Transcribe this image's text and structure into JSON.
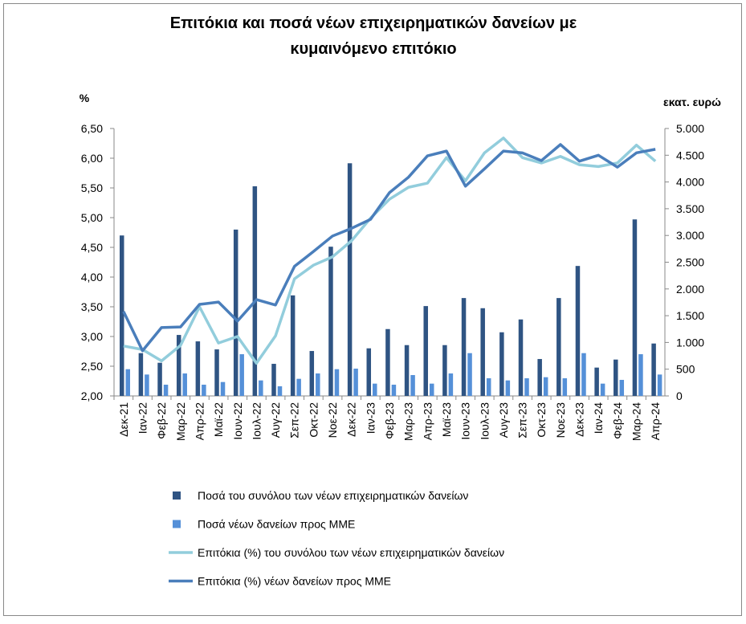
{
  "chart_data": {
    "type": "bar-line",
    "title": "Επιτόκια και ποσά νέων επιχειρηματικών  δανείων με κυμαινόμενο επιτόκιο",
    "y_label": "%",
    "y2_label": "εκατ. ευρώ",
    "categories": [
      "Δεκ-21",
      "Ιαν-22",
      "Φεβ-22",
      "Μαρ-22",
      "Απρ-22",
      "Μαϊ-22",
      "Ιουν-22",
      "Ιουλ-22",
      "Αυγ-22",
      "Σεπ-22",
      "Οκτ-22",
      "Νοε-22",
      "Δεκ-22",
      "Ιαν-23",
      "Φεβ-23",
      "Μαρ-23",
      "Απρ-23",
      "Μαϊ-23",
      "Ιουν-23",
      "Ιουλ-23",
      "Αυγ-23",
      "Σεπ-23",
      "Οκτ-23",
      "Νοε-23",
      "Δεκ-23",
      "Ιαν-24",
      "Φεβ-24",
      "Μαρ-24",
      "Απρ-24"
    ],
    "series": [
      {
        "name": "Ποσά του συνόλου των νέων επιχειρηματικών δανείων",
        "kind": "bar",
        "axis": "y2",
        "color": "#2f5483",
        "values": [
          3000,
          800,
          620,
          1140,
          1020,
          870,
          3110,
          3920,
          600,
          1880,
          840,
          2790,
          4350,
          890,
          1250,
          950,
          1680,
          950,
          1830,
          1640,
          1190,
          1430,
          690,
          1830,
          2430,
          530,
          680,
          3300,
          980
        ]
      },
      {
        "name": "Ποσά νέων δανείων προς ΜΜΕ",
        "kind": "bar",
        "axis": "y2",
        "color": "#5590d8",
        "values": [
          500,
          400,
          210,
          420,
          210,
          260,
          780,
          290,
          180,
          320,
          420,
          500,
          510,
          230,
          210,
          390,
          230,
          420,
          800,
          330,
          290,
          330,
          350,
          330,
          800,
          230,
          300,
          780,
          400
        ]
      },
      {
        "name": "Επιτόκια (%) του συνόλου των νέων επιχειρηματικών δανείων",
        "kind": "line",
        "color": "#92cddc",
        "values": [
          2.84,
          2.78,
          2.59,
          2.85,
          3.5,
          2.89,
          3.0,
          2.55,
          3.01,
          3.97,
          4.2,
          4.34,
          4.61,
          4.99,
          5.31,
          5.51,
          5.58,
          6.01,
          5.62,
          6.09,
          6.34,
          6.01,
          5.92,
          6.03,
          5.89,
          5.86,
          5.92,
          6.22,
          5.95
        ]
      },
      {
        "name": "Επιτόκια (%) νέων δανείων προς ΜΜΕ",
        "kind": "line",
        "color": "#4a7ebb",
        "values": [
          3.42,
          2.76,
          3.15,
          3.16,
          3.54,
          3.58,
          3.26,
          3.62,
          3.53,
          4.18,
          4.43,
          4.69,
          4.82,
          4.97,
          5.42,
          5.68,
          6.04,
          6.12,
          5.53,
          5.82,
          6.12,
          6.09,
          5.96,
          6.23,
          5.95,
          6.05,
          5.85,
          6.09,
          6.15
        ]
      }
    ],
    "ylim": [
      2,
      6.5
    ],
    "yticks": [
      {
        "value": 2,
        "label": "2,00"
      },
      {
        "value": 2.5,
        "label": "2,50"
      },
      {
        "value": 3,
        "label": "3,00"
      },
      {
        "value": 3.5,
        "label": "3,50"
      },
      {
        "value": 4,
        "label": "4,00"
      },
      {
        "value": 4.5,
        "label": "4,50"
      },
      {
        "value": 5,
        "label": "5,00"
      },
      {
        "value": 5.5,
        "label": "5,50"
      },
      {
        "value": 6,
        "label": "6,00"
      },
      {
        "value": 6.5,
        "label": "6,50"
      }
    ],
    "y2lim": [
      0,
      5000
    ],
    "y2ticks": [
      0,
      500,
      {
        "value": 1000,
        "label": "1.000"
      },
      {
        "value": 1500,
        "label": "1.500"
      },
      {
        "value": 2000,
        "label": "2.000"
      },
      {
        "value": 2500,
        "label": "2.500"
      },
      {
        "value": 3000,
        "label": "3.000"
      },
      {
        "value": 3500,
        "label": "3.500"
      },
      {
        "value": 4000,
        "label": "4.000"
      },
      {
        "value": 4500,
        "label": "4.500"
      },
      {
        "value": 5000,
        "label": "5.000"
      }
    ],
    "grid": false,
    "legend": "bottom"
  }
}
